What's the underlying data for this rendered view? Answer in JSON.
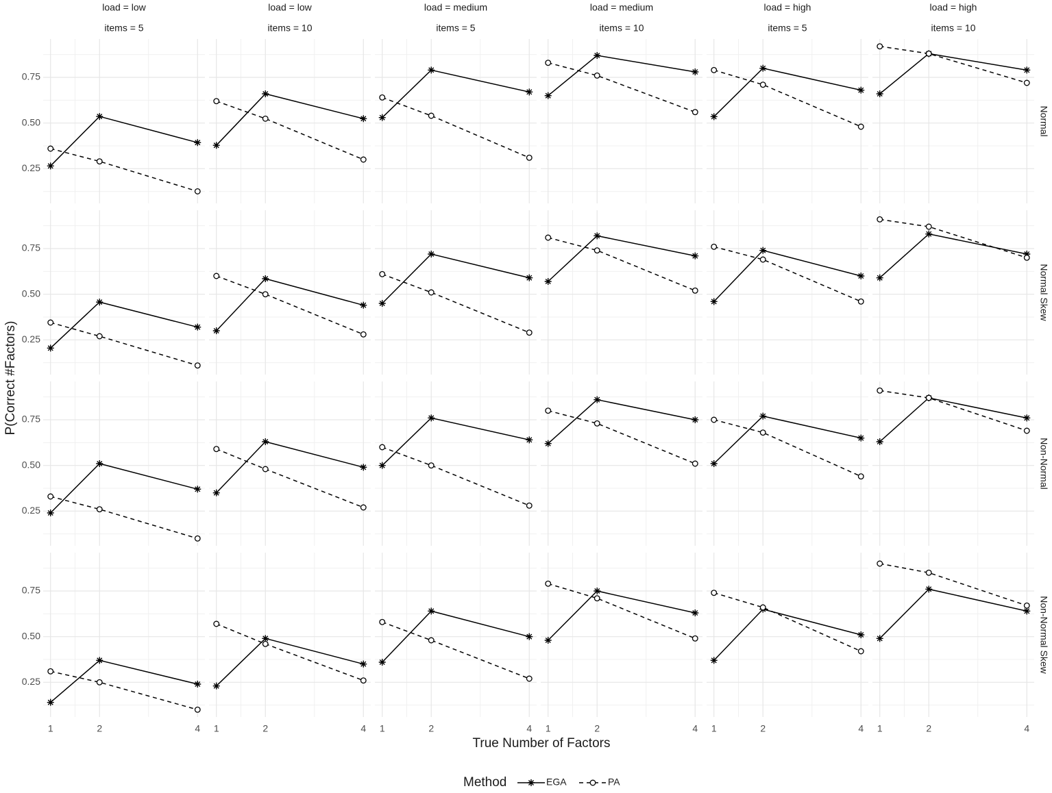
{
  "chart_data": {
    "type": "line",
    "x_label": "True Number of Factors",
    "y_label": "P(Correct #Factors)",
    "legend_title": "Method",
    "col_strips": [
      [
        "load = low",
        "items = 5"
      ],
      [
        "load = low",
        "items = 10"
      ],
      [
        "load = medium",
        "items = 5"
      ],
      [
        "load = medium",
        "items = 10"
      ],
      [
        "load = high",
        "items = 5"
      ],
      [
        "load = high",
        "items = 10"
      ]
    ],
    "row_strips": [
      "Normal",
      "Normal Skew",
      "Non-Normal",
      "Non-Normal Skew"
    ],
    "x": [
      1,
      2,
      4
    ],
    "xlim": [
      0.85,
      4.15
    ],
    "xticks": [
      1,
      2,
      4
    ],
    "ylim": [
      0.06,
      0.96
    ],
    "yticks": [
      0.25,
      {
        "value": 0.5,
        "label": "0.50"
      },
      0.75
    ],
    "grid": true,
    "legend_position": "bottom",
    "series": [
      {
        "name": "EGA",
        "color": "#000000",
        "linestyle": "solid",
        "marker": "asterisk",
        "values": [
          [
            [
              0.265,
              0.536,
              0.393
            ],
            [
              0.378,
              0.66,
              0.524
            ],
            [
              0.53,
              0.79,
              0.67
            ],
            [
              0.65,
              0.87,
              0.78
            ],
            [
              0.535,
              0.8,
              0.68
            ],
            [
              0.66,
              0.88,
              0.79
            ]
          ],
          [
            [
              0.205,
              0.457,
              0.32
            ],
            [
              0.3,
              0.585,
              0.44
            ],
            [
              0.45,
              0.72,
              0.59
            ],
            [
              0.57,
              0.82,
              0.71
            ],
            [
              0.46,
              0.74,
              0.6
            ],
            [
              0.59,
              0.83,
              0.72
            ]
          ],
          [
            [
              0.24,
              0.51,
              0.37
            ],
            [
              0.35,
              0.63,
              0.49
            ],
            [
              0.5,
              0.76,
              0.64
            ],
            [
              0.62,
              0.86,
              0.75
            ],
            [
              0.51,
              0.77,
              0.65
            ],
            [
              0.63,
              0.87,
              0.76
            ]
          ],
          [
            [
              0.14,
              0.37,
              0.24
            ],
            [
              0.23,
              0.49,
              0.35
            ],
            [
              0.36,
              0.64,
              0.5
            ],
            [
              0.48,
              0.75,
              0.63
            ],
            [
              0.37,
              0.65,
              0.51
            ],
            [
              0.49,
              0.76,
              0.64
            ]
          ]
        ]
      },
      {
        "name": "PA",
        "color": "#000000",
        "linestyle": "dashed",
        "marker": "circle",
        "values": [
          [
            [
              0.36,
              0.29,
              0.126
            ],
            [
              0.62,
              0.524,
              0.3
            ],
            [
              0.64,
              0.54,
              0.31
            ],
            [
              0.83,
              0.76,
              0.56
            ],
            [
              0.79,
              0.71,
              0.48
            ],
            [
              0.92,
              0.88,
              0.72
            ]
          ],
          [
            [
              0.345,
              0.27,
              0.11
            ],
            [
              0.6,
              0.5,
              0.28
            ],
            [
              0.61,
              0.51,
              0.29
            ],
            [
              0.81,
              0.74,
              0.52
            ],
            [
              0.76,
              0.69,
              0.46
            ],
            [
              0.91,
              0.87,
              0.7
            ]
          ],
          [
            [
              0.33,
              0.26,
              0.1
            ],
            [
              0.59,
              0.48,
              0.27
            ],
            [
              0.6,
              0.5,
              0.28
            ],
            [
              0.8,
              0.73,
              0.51
            ],
            [
              0.75,
              0.68,
              0.44
            ],
            [
              0.91,
              0.87,
              0.69
            ]
          ],
          [
            [
              0.31,
              0.25,
              0.1
            ],
            [
              0.57,
              0.46,
              0.26
            ],
            [
              0.58,
              0.48,
              0.27
            ],
            [
              0.79,
              0.71,
              0.49
            ],
            [
              0.74,
              0.66,
              0.42
            ],
            [
              0.9,
              0.85,
              0.67
            ]
          ]
        ]
      }
    ]
  }
}
